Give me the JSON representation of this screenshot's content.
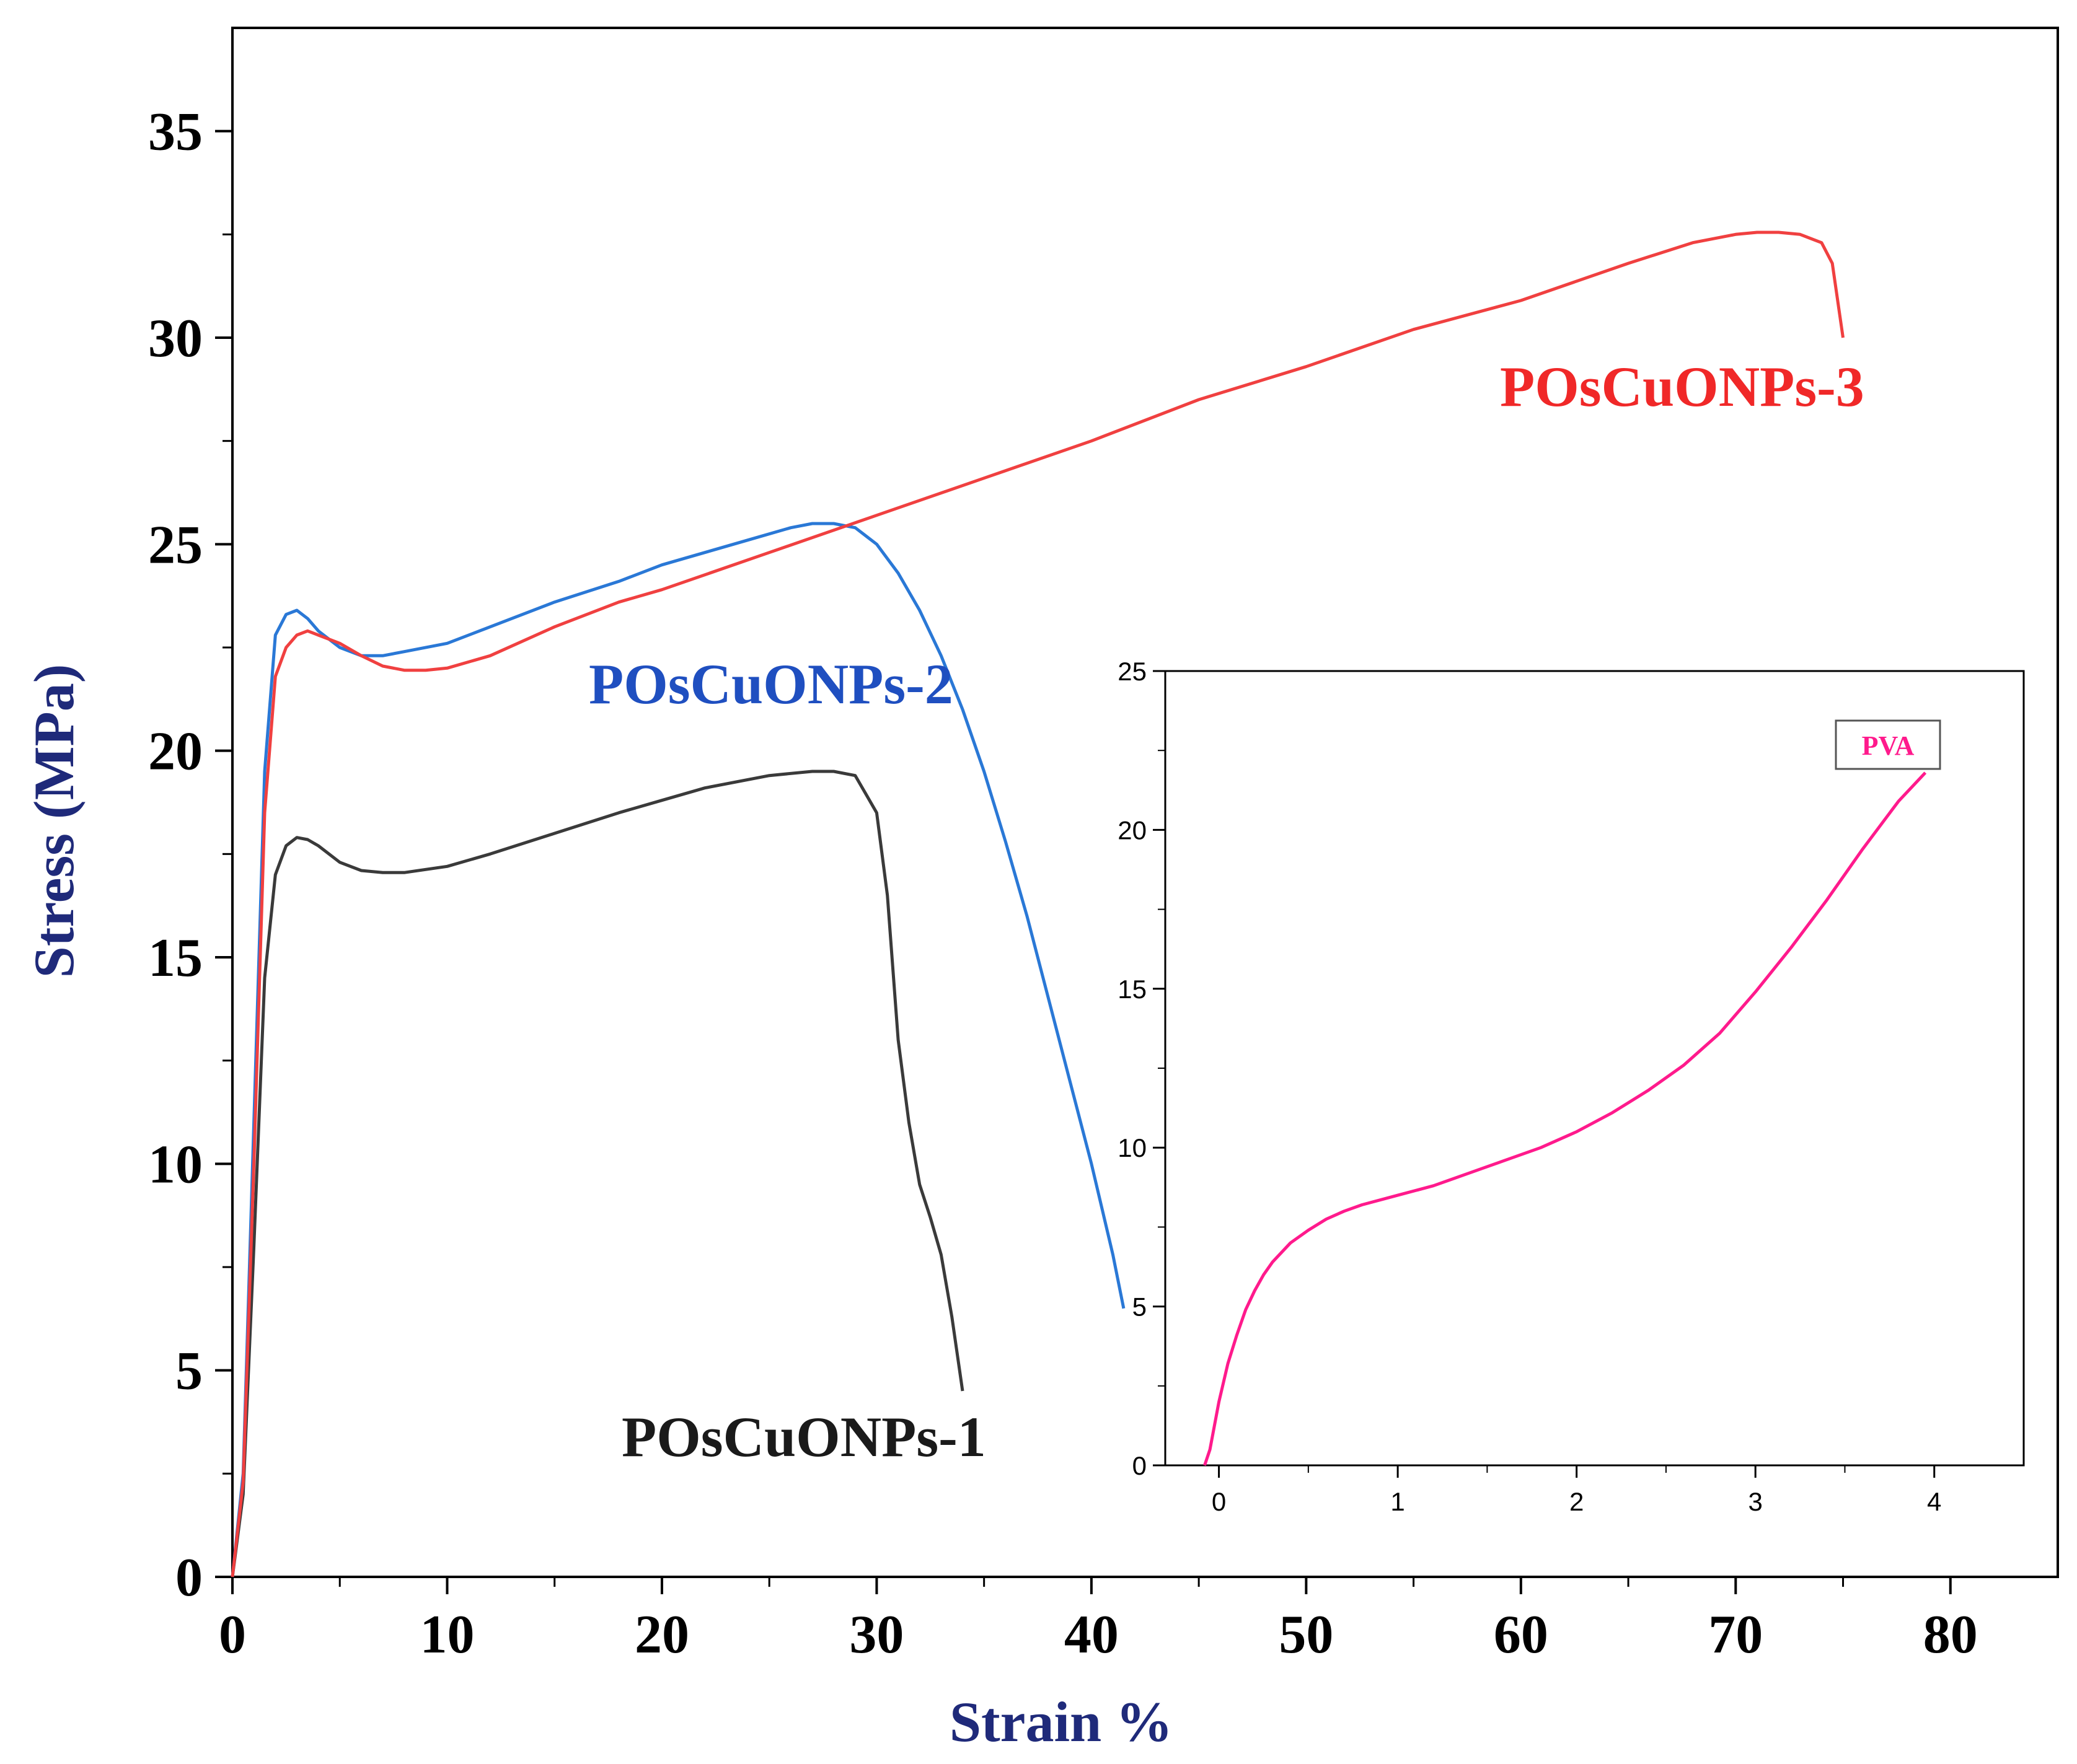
{
  "chart_data": [
    {
      "type": "line",
      "xlabel": "Strain %",
      "ylabel": "Stress (MPa)",
      "xlim": [
        0,
        85
      ],
      "ylim": [
        0,
        37.5
      ],
      "xticks": [
        0,
        10,
        20,
        30,
        40,
        50,
        60,
        70,
        80
      ],
      "yticks": [
        0,
        5,
        10,
        15,
        20,
        25,
        30,
        35
      ],
      "axis_color": "#1f2a7a",
      "series": [
        {
          "name": "POsCuONPs-1",
          "label": "POsCuONPs-1",
          "color": "#3a3a3a",
          "label_color": "#1a1a1a",
          "x": [
            0,
            0.5,
            1,
            1.5,
            2,
            2.5,
            3,
            3.5,
            4,
            5,
            6,
            7,
            8,
            10,
            12,
            15,
            18,
            20,
            22,
            25,
            27,
            28,
            29,
            30,
            30.5,
            31,
            31.5,
            32,
            32.5,
            33,
            33.5,
            34
          ],
          "y": [
            0,
            2,
            8,
            14.5,
            17,
            17.7,
            17.9,
            17.85,
            17.7,
            17.3,
            17.1,
            17.05,
            17.05,
            17.2,
            17.5,
            18.0,
            18.5,
            18.8,
            19.1,
            19.4,
            19.5,
            19.5,
            19.4,
            18.5,
            16.5,
            13,
            11,
            9.5,
            8.7,
            7.8,
            6.3,
            4.5
          ]
        },
        {
          "name": "POsCuONPs-2",
          "label": "POsCuONPs-2",
          "color": "#2a78d6",
          "label_color": "#1f4fc0",
          "x": [
            0,
            0.5,
            1,
            1.5,
            2,
            2.5,
            3,
            3.5,
            4,
            5,
            6,
            7,
            8,
            10,
            12,
            15,
            18,
            20,
            22,
            24,
            26,
            27,
            28,
            29,
            30,
            31,
            32,
            33,
            34,
            35,
            36,
            37,
            38,
            39,
            40,
            41,
            41.5
          ],
          "y": [
            0,
            2.5,
            11,
            19.5,
            22.8,
            23.3,
            23.4,
            23.2,
            22.9,
            22.5,
            22.3,
            22.3,
            22.4,
            22.6,
            23.0,
            23.6,
            24.1,
            24.5,
            24.8,
            25.1,
            25.4,
            25.5,
            25.5,
            25.4,
            25.0,
            24.3,
            23.4,
            22.3,
            21.0,
            19.5,
            17.8,
            16.0,
            14.0,
            12.0,
            10.0,
            7.8,
            6.5
          ]
        },
        {
          "name": "POsCuONPs-3",
          "label": "POsCuONPs-3",
          "color": "#f04040",
          "label_color": "#f02828",
          "x": [
            0,
            0.5,
            1,
            1.5,
            2,
            2.5,
            3,
            3.5,
            4,
            5,
            6,
            7,
            8,
            9,
            10,
            12,
            15,
            18,
            20,
            25,
            30,
            35,
            40,
            45,
            50,
            55,
            60,
            65,
            68,
            70,
            71,
            72,
            73,
            74,
            74.5,
            75
          ],
          "y": [
            0,
            2.3,
            10,
            18.5,
            21.8,
            22.5,
            22.8,
            22.9,
            22.8,
            22.6,
            22.3,
            22.05,
            21.95,
            21.95,
            22.0,
            22.3,
            23.0,
            23.6,
            23.9,
            24.8,
            25.7,
            26.6,
            27.5,
            28.5,
            29.3,
            30.2,
            30.9,
            31.8,
            32.3,
            32.5,
            32.55,
            32.55,
            32.5,
            32.3,
            31.8,
            30.0
          ]
        }
      ]
    },
    {
      "type": "line",
      "title": "inset",
      "xlim": [
        -0.3,
        4.5
      ],
      "ylim": [
        0,
        25
      ],
      "xticks": [
        0,
        1,
        2,
        3,
        4
      ],
      "yticks": [
        0,
        5,
        10,
        15,
        20,
        25
      ],
      "series": [
        {
          "name": "PVA",
          "label": "PVA",
          "color": "#ff1a8c",
          "x": [
            -0.08,
            -0.05,
            0,
            0.05,
            0.1,
            0.15,
            0.2,
            0.25,
            0.3,
            0.4,
            0.5,
            0.6,
            0.7,
            0.8,
            1.0,
            1.2,
            1.4,
            1.6,
            1.8,
            2.0,
            2.2,
            2.4,
            2.6,
            2.8,
            3.0,
            3.2,
            3.4,
            3.6,
            3.8,
            3.95
          ],
          "y": [
            0,
            0.5,
            2.0,
            3.2,
            4.1,
            4.9,
            5.5,
            6.0,
            6.4,
            7.0,
            7.4,
            7.75,
            8.0,
            8.2,
            8.5,
            8.8,
            9.2,
            9.6,
            10.0,
            10.5,
            11.1,
            11.8,
            12.6,
            13.6,
            14.9,
            16.3,
            17.8,
            19.4,
            20.9,
            21.8
          ]
        }
      ]
    }
  ]
}
